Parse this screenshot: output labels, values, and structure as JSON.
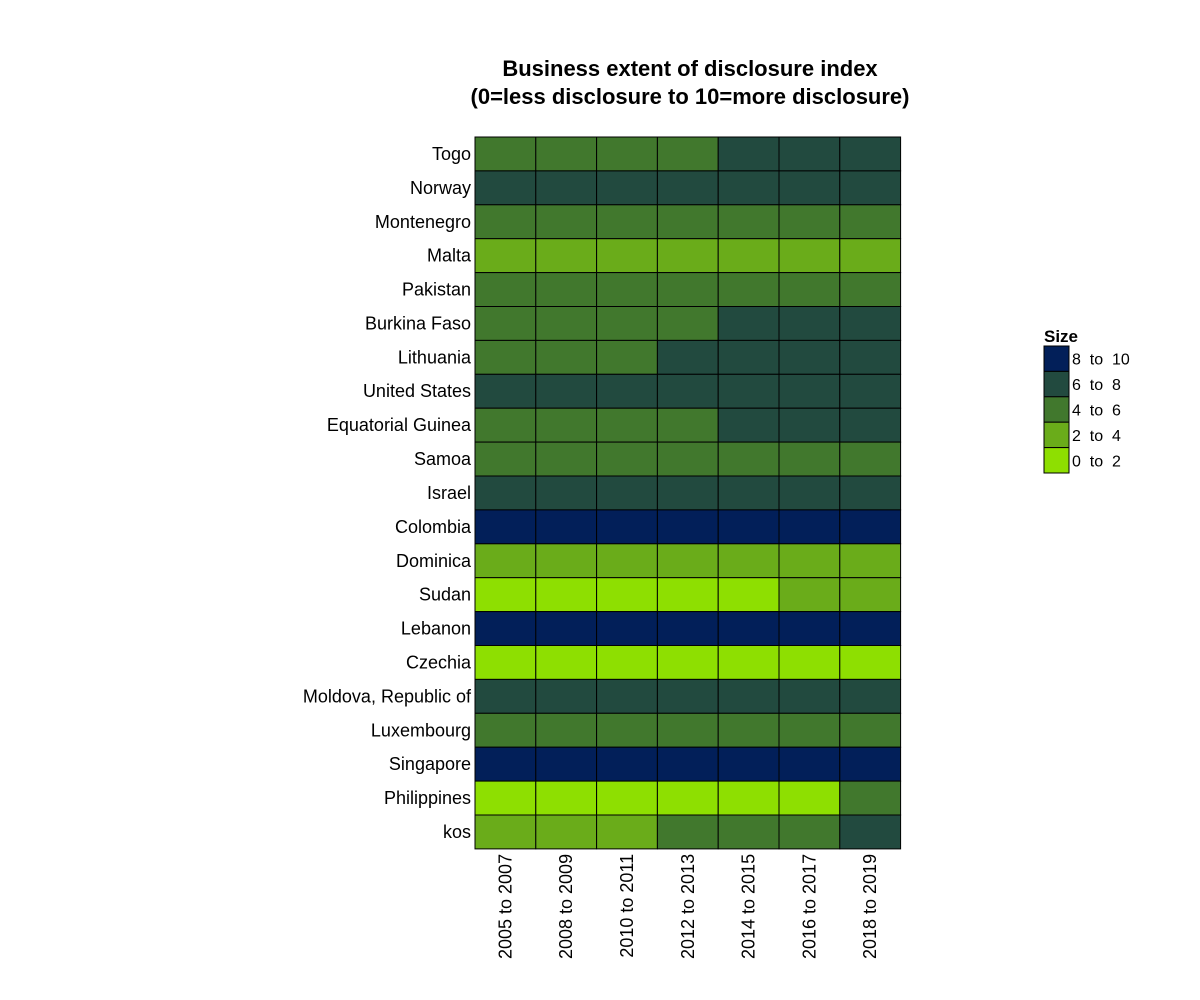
{
  "chart_data": {
    "type": "heatmap",
    "title": [
      "Business extent of disclosure index",
      "(0=less disclosure to 10=more disclosure)"
    ],
    "x_categories": [
      "2005 to 2007",
      "2008 to 2009",
      "2010 to 2011",
      "2012 to 2013",
      "2014 to 2015",
      "2016 to 2017",
      "2018 to 2019"
    ],
    "y_categories": [
      "Togo",
      "Norway",
      "Montenegro",
      "Malta",
      "Pakistan",
      "Burkina Faso",
      "Lithuania",
      "United States",
      "Equatorial Guinea",
      "Samoa",
      "Israel",
      "Colombia",
      "Dominica",
      "Sudan",
      "Lebanon",
      "Czechia",
      "Moldova, Republic of",
      "Luxembourg",
      "Singapore",
      "Philippines",
      "kos"
    ],
    "bins_per_cell": [
      [
        "4 to 6",
        "4 to 6",
        "4 to 6",
        "4 to 6",
        "6 to 8",
        "6 to 8",
        "6 to 8"
      ],
      [
        "6 to 8",
        "6 to 8",
        "6 to 8",
        "6 to 8",
        "6 to 8",
        "6 to 8",
        "6 to 8"
      ],
      [
        "4 to 6",
        "4 to 6",
        "4 to 6",
        "4 to 6",
        "4 to 6",
        "4 to 6",
        "4 to 6"
      ],
      [
        "2 to 4",
        "2 to 4",
        "2 to 4",
        "2 to 4",
        "2 to 4",
        "2 to 4",
        "2 to 4"
      ],
      [
        "4 to 6",
        "4 to 6",
        "4 to 6",
        "4 to 6",
        "4 to 6",
        "4 to 6",
        "4 to 6"
      ],
      [
        "4 to 6",
        "4 to 6",
        "4 to 6",
        "4 to 6",
        "6 to 8",
        "6 to 8",
        "6 to 8"
      ],
      [
        "4 to 6",
        "4 to 6",
        "4 to 6",
        "6 to 8",
        "6 to 8",
        "6 to 8",
        "6 to 8"
      ],
      [
        "6 to 8",
        "6 to 8",
        "6 to 8",
        "6 to 8",
        "6 to 8",
        "6 to 8",
        "6 to 8"
      ],
      [
        "4 to 6",
        "4 to 6",
        "4 to 6",
        "4 to 6",
        "6 to 8",
        "6 to 8",
        "6 to 8"
      ],
      [
        "4 to 6",
        "4 to 6",
        "4 to 6",
        "4 to 6",
        "4 to 6",
        "4 to 6",
        "4 to 6"
      ],
      [
        "6 to 8",
        "6 to 8",
        "6 to 8",
        "6 to 8",
        "6 to 8",
        "6 to 8",
        "6 to 8"
      ],
      [
        "8 to 10",
        "8 to 10",
        "8 to 10",
        "8 to 10",
        "8 to 10",
        "8 to 10",
        "8 to 10"
      ],
      [
        "2 to 4",
        "2 to 4",
        "2 to 4",
        "2 to 4",
        "2 to 4",
        "2 to 4",
        "2 to 4"
      ],
      [
        "0 to 2",
        "0 to 2",
        "0 to 2",
        "0 to 2",
        "0 to 2",
        "2 to 4",
        "2 to 4"
      ],
      [
        "8 to 10",
        "8 to 10",
        "8 to 10",
        "8 to 10",
        "8 to 10",
        "8 to 10",
        "8 to 10"
      ],
      [
        "0 to 2",
        "0 to 2",
        "0 to 2",
        "0 to 2",
        "0 to 2",
        "0 to 2",
        "0 to 2"
      ],
      [
        "6 to 8",
        "6 to 8",
        "6 to 8",
        "6 to 8",
        "6 to 8",
        "6 to 8",
        "6 to 8"
      ],
      [
        "4 to 6",
        "4 to 6",
        "4 to 6",
        "4 to 6",
        "4 to 6",
        "4 to 6",
        "4 to 6"
      ],
      [
        "8 to 10",
        "8 to 10",
        "8 to 10",
        "8 to 10",
        "8 to 10",
        "8 to 10",
        "8 to 10"
      ],
      [
        "0 to 2",
        "0 to 2",
        "0 to 2",
        "0 to 2",
        "0 to 2",
        "0 to 2",
        "4 to 6"
      ],
      [
        "2 to 4",
        "2 to 4",
        "2 to 4",
        "4 to 6",
        "4 to 6",
        "4 to 6",
        "6 to 8"
      ]
    ],
    "legend": {
      "title": "Size",
      "placement": "right",
      "items": [
        {
          "label": "8  to  10",
          "bin": "8 to 10",
          "color": "#021f59"
        },
        {
          "label": "6  to  8",
          "bin": "6 to 8",
          "color": "#224a3f"
        },
        {
          "label": "4  to  6",
          "bin": "4 to 6",
          "color": "#41782d"
        },
        {
          "label": "2  to  4",
          "bin": "2 to 4",
          "color": "#6aac1a"
        },
        {
          "label": "0  to  2",
          "bin": "0 to 2",
          "color": "#8edf01"
        }
      ]
    },
    "grid": false
  }
}
